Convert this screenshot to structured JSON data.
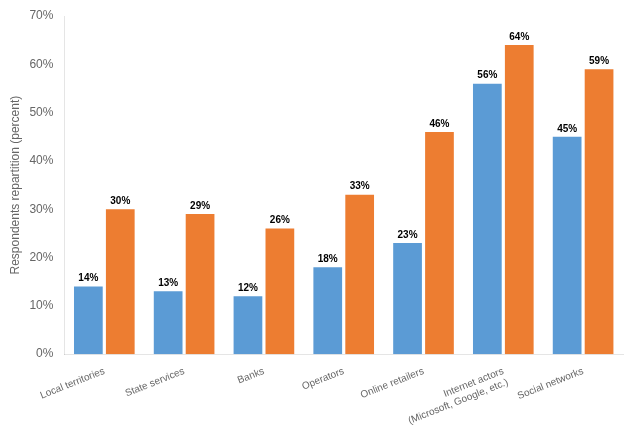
{
  "chart_data": {
    "type": "bar",
    "categories": [
      "Local territories",
      "State services",
      "Banks",
      "Operators",
      "Online retailers",
      "Internet actors\n(Microsoft, Google, etc.)",
      "Social networks"
    ],
    "series": [
      {
        "color": "#5B9BD5",
        "values": [
          14,
          13,
          12,
          18,
          23,
          56,
          45
        ],
        "value_labels": [
          "14%",
          "13%",
          "12%",
          "18%",
          "23%",
          "56%",
          "45%"
        ]
      },
      {
        "color": "#ED7D31",
        "values": [
          30,
          29,
          26,
          33,
          46,
          64,
          59
        ],
        "value_labels": [
          "30%",
          "29%",
          "26%",
          "33%",
          "46%",
          "64%",
          "59%"
        ]
      }
    ],
    "y_label": "Respondents repartition (percent)",
    "ylim": [
      0,
      70
    ],
    "yticks": [
      {
        "value": 0,
        "label": "0%"
      },
      {
        "value": 10,
        "label": "10%"
      },
      {
        "value": 20,
        "label": "20%"
      },
      {
        "value": 30,
        "label": "30%"
      },
      {
        "value": 40,
        "label": "40%"
      },
      {
        "value": 50,
        "label": "50%"
      },
      {
        "value": 60,
        "label": "60%"
      },
      {
        "value": 70,
        "label": "70%"
      }
    ],
    "grid": false,
    "data_labels": true
  }
}
